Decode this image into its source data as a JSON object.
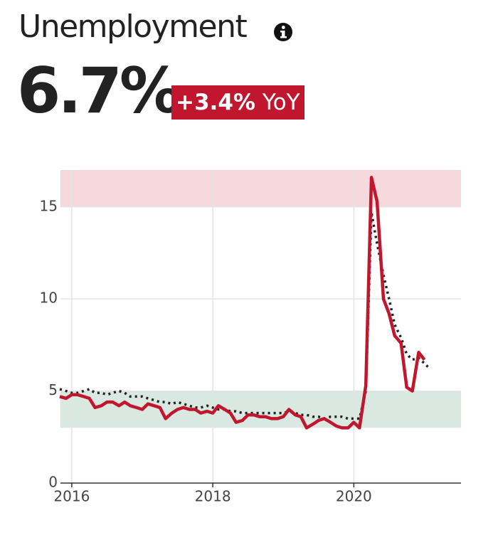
{
  "header": {
    "title": "Unemployment",
    "value": "6.7%",
    "change": "+3.4%",
    "period": "YoY"
  },
  "chart_data": {
    "type": "line",
    "x": [
      2015.83,
      2015.92,
      2016.0,
      2016.08,
      2016.17,
      2016.25,
      2016.33,
      2016.42,
      2016.5,
      2016.58,
      2016.67,
      2016.75,
      2016.83,
      2016.92,
      2017.0,
      2017.08,
      2017.17,
      2017.25,
      2017.33,
      2017.42,
      2017.5,
      2017.58,
      2017.67,
      2017.75,
      2017.83,
      2017.92,
      2018.0,
      2018.08,
      2018.17,
      2018.25,
      2018.33,
      2018.42,
      2018.5,
      2018.58,
      2018.67,
      2018.75,
      2018.83,
      2018.92,
      2019.0,
      2019.08,
      2019.17,
      2019.25,
      2019.33,
      2019.42,
      2019.5,
      2019.58,
      2019.67,
      2019.75,
      2019.83,
      2019.92,
      2020.0,
      2020.08,
      2020.17,
      2020.25,
      2020.33,
      2020.42,
      2020.5,
      2020.58,
      2020.67,
      2020.75,
      2020.83,
      2020.92,
      2021.0,
      2021.08
    ],
    "series": [
      {
        "color": "#c0172f",
        "style": "solid",
        "values": [
          4.7,
          4.6,
          4.8,
          4.8,
          4.7,
          4.6,
          4.1,
          4.2,
          4.4,
          4.4,
          4.2,
          4.4,
          4.2,
          4.1,
          4.0,
          4.3,
          4.2,
          4.1,
          3.5,
          3.8,
          4.0,
          4.1,
          4.0,
          4.0,
          3.8,
          3.9,
          3.8,
          4.2,
          4.0,
          3.8,
          3.3,
          3.4,
          3.7,
          3.7,
          3.6,
          3.6,
          3.5,
          3.5,
          3.6,
          4.0,
          3.7,
          3.6,
          3.0,
          3.2,
          3.4,
          3.5,
          3.3,
          3.1,
          3.0,
          3.0,
          3.3,
          3.0,
          5.3,
          16.6,
          15.3,
          10.0,
          9.2,
          8.0,
          7.6,
          5.2,
          5.0,
          7.1,
          6.7,
          null
        ]
      },
      {
        "color": "#222222",
        "style": "dotted",
        "values": [
          5.1,
          5.0,
          4.9,
          4.9,
          5.0,
          5.1,
          4.9,
          4.9,
          4.8,
          4.9,
          5.0,
          4.9,
          4.7,
          4.7,
          4.7,
          4.6,
          4.5,
          4.4,
          4.4,
          4.3,
          4.4,
          4.3,
          4.2,
          4.1,
          4.1,
          4.2,
          4.1,
          4.0,
          4.0,
          3.9,
          3.9,
          3.8,
          3.8,
          3.8,
          3.8,
          3.8,
          3.8,
          3.8,
          3.8,
          3.9,
          3.8,
          3.7,
          3.7,
          3.6,
          3.6,
          3.5,
          3.6,
          3.6,
          3.6,
          3.5,
          3.5,
          3.5,
          5.0,
          14.7,
          13.0,
          11.3,
          10.0,
          8.6,
          7.9,
          7.0,
          6.7,
          6.8,
          6.5,
          6.2
        ]
      }
    ],
    "bands": [
      {
        "from": 15,
        "to": 17,
        "color": "#f5d9dc"
      },
      {
        "from": 3,
        "to": 5,
        "color": "#d9e8e0"
      }
    ],
    "xlim": [
      2015.84,
      2021.52
    ],
    "xticks": [
      2016,
      2018,
      2020
    ],
    "ylim": [
      0,
      17
    ],
    "yticks": [
      0,
      5,
      10,
      15
    ],
    "grid": true
  }
}
